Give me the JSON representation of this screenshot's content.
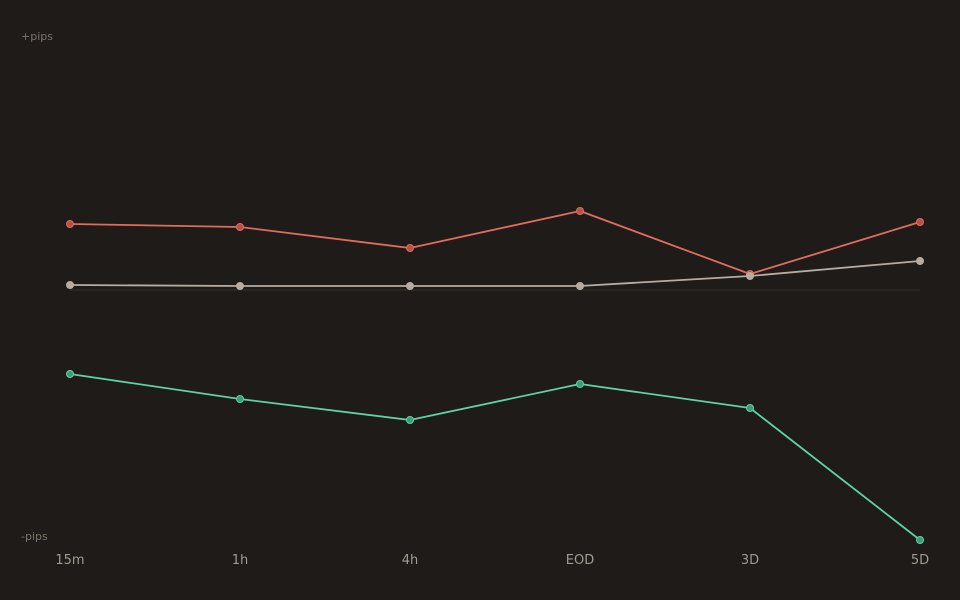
{
  "chart_data": {
    "type": "line",
    "categories": [
      "15m",
      "1h",
      "4h",
      "EOD",
      "3D",
      "5D"
    ],
    "ylabel_top": "+pips",
    "ylabel_bottom": "-pips",
    "ylim": [
      -100,
      100
    ],
    "zero_line": true,
    "grid": false,
    "series": [
      {
        "color": "#e06c5e",
        "point_color": "#b5524a",
        "values": [
          26.4,
          25.2,
          16.8,
          31.6,
          6.4,
          27.2
        ]
      },
      {
        "color": "#b8aca2",
        "point_color": "#b8aca2",
        "values": [
          2.0,
          1.6,
          1.6,
          1.6,
          5.6,
          11.6
        ]
      },
      {
        "color": "#5fd1aa",
        "point_color": "#3f9a78",
        "values": [
          -33.6,
          -43.6,
          -52.0,
          -37.6,
          -47.2,
          -100.0
        ]
      }
    ]
  },
  "colors": {
    "background": "#1e1b18",
    "zero_line": "#2e2a26"
  }
}
